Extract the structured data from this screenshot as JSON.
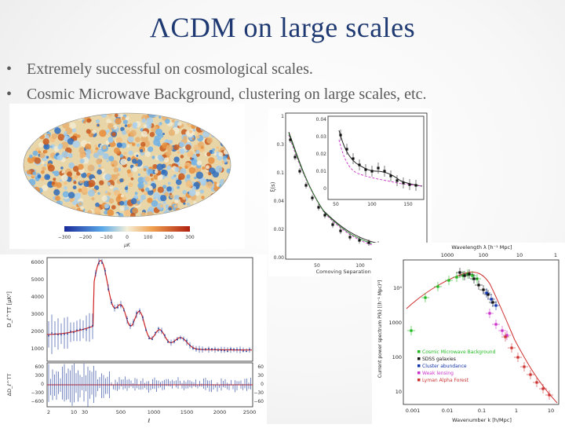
{
  "slide": {
    "title": "ΛCDM on large scales",
    "bullets": [
      "Extremely successful on cosmological scales.",
      "Cosmic Microwave Background, clustering on large scales, etc."
    ]
  },
  "figures": {
    "cmb_map": {
      "colorbar_ticks": [
        "−300",
        "−200",
        "−100",
        "0",
        "100",
        "200",
        "300"
      ],
      "colorbar_unit": "μK"
    },
    "correlation": {
      "y_ticks": [
        "1",
        "0.3",
        "0.1",
        "0.04",
        "0.02",
        "0.00"
      ],
      "x_ticks": [
        "50",
        "100",
        "150"
      ],
      "inset_y_ticks": [
        "0.04",
        "0.03",
        "0.02",
        "0.01",
        "0"
      ],
      "inset_x_ticks": [
        "50",
        "100",
        "150"
      ],
      "ylabel": "ξ(s)",
      "xlabel": "Comoving Separation (h⁻¹ Mpc)"
    },
    "power_spectrum": {
      "top_axis_label": "Wavelength λ [h⁻¹ Mpc]",
      "top_ticks": [
        "1000",
        "100",
        "10",
        "1"
      ],
      "ylabel": "Current power spectrum P(k) [(h⁻¹ Mpc)³]",
      "y_ticks": [
        "10⁴",
        "1000",
        "100",
        "10"
      ],
      "x_ticks": [
        "0.001",
        "0.01",
        "0.1",
        "1",
        "10"
      ],
      "xlabel": "Wavenumber k [h/Mpc]",
      "legend": [
        {
          "label": "Cosmic Microwave Background",
          "color": "#22bb22"
        },
        {
          "label": "SDSS galaxies",
          "color": "#111111"
        },
        {
          "label": "Cluster abundance",
          "color": "#1133aa"
        },
        {
          "label": "Weak lensing",
          "color": "#cc33cc"
        },
        {
          "label": "Lyman Alpha Forest",
          "color": "#cc3333"
        }
      ]
    },
    "cmb_spectrum": {
      "y_ticks": [
        "6000",
        "5000",
        "4000",
        "3000",
        "2000",
        "1000"
      ],
      "ylabel": "D_ℓ^TT [μK²]",
      "resid_ticks": [
        "600",
        "300",
        "0",
        "−300",
        "−600"
      ],
      "resid_right_ticks": [
        "60",
        "30",
        "0",
        "−30",
        "−60"
      ],
      "resid_ylabel": "ΔD_ℓ^TT",
      "x_ticks": [
        "2",
        "10",
        "30",
        "500",
        "1000",
        "1500",
        "2000",
        "2500"
      ],
      "xlabel": "ℓ"
    }
  }
}
